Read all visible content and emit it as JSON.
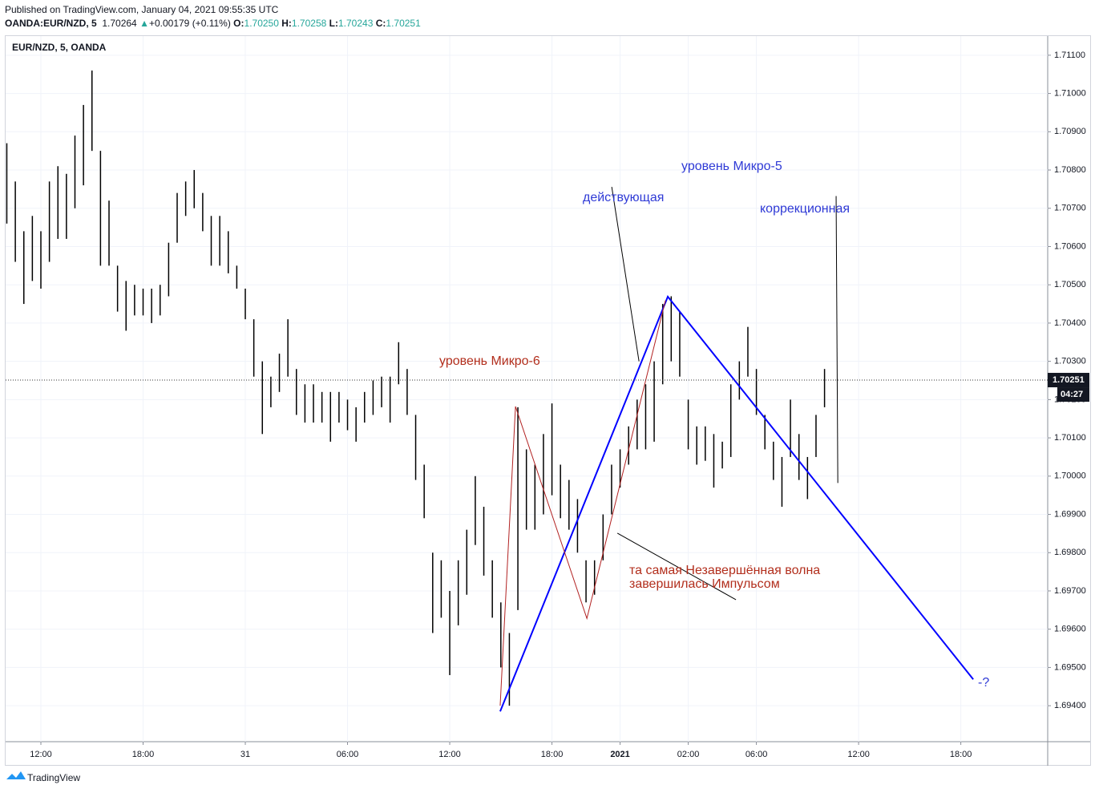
{
  "header": {
    "published": "Published on TradingView.com, January 04, 2021 09:55:35 UTC",
    "symbol": "OANDA:EUR/NZD, 5",
    "price": "1.70264",
    "arrow": "▲",
    "change": "+0.00179 (+0.11%)",
    "o_label": "O:",
    "o": "1.70250",
    "h_label": "H:",
    "h": "1.70258",
    "l_label": "L:",
    "l": "1.70243",
    "c_label": "C:",
    "c": "1.70251"
  },
  "footer": {
    "brand": "TradingView"
  },
  "chart_data": {
    "type": "ohlc",
    "title": "EUR/NZD, 5, OANDA",
    "color": "#000000",
    "x": [
      10,
      10.5,
      11,
      11.5,
      12,
      12.5,
      13,
      13.5,
      14,
      14.5,
      15,
      15.5,
      16,
      16.5,
      17,
      17.5,
      18,
      18.5,
      19,
      19.5,
      20,
      20.5,
      21,
      21.5,
      22,
      22.5,
      23,
      23.5,
      24,
      24.5,
      25,
      25.5,
      26,
      26.5,
      27,
      27.5,
      28,
      28.5,
      29,
      29.5,
      30,
      30.5,
      31,
      31.5,
      32,
      32.5,
      33,
      33.5,
      34,
      34.5,
      35,
      35.5,
      36,
      36.5,
      37,
      37.5,
      38,
      38.5,
      39,
      39.5,
      40,
      40.5,
      41,
      41.5,
      42,
      42.5,
      43,
      43.5,
      44,
      44.5,
      45,
      45.5,
      46,
      46.5,
      47,
      47.5,
      48,
      48.5,
      49,
      49.5,
      50,
      50.5,
      51,
      51.5,
      52,
      52.5,
      53,
      53.5,
      54,
      54.5,
      55,
      55.5,
      56,
      56.5,
      57,
      57.5,
      58
    ],
    "high": [
      1.7087,
      1.7077,
      1.7064,
      1.7068,
      1.7064,
      1.7077,
      1.7081,
      1.7079,
      1.7089,
      1.7097,
      1.7106,
      1.7085,
      1.7072,
      1.7055,
      1.7051,
      1.705,
      1.7049,
      1.7049,
      1.705,
      1.7061,
      1.7074,
      1.7077,
      1.708,
      1.7074,
      1.7068,
      1.7068,
      1.7064,
      1.7055,
      1.7049,
      1.7041,
      1.703,
      1.7026,
      1.7032,
      1.7041,
      1.7028,
      1.7024,
      1.7024,
      1.7022,
      1.7022,
      1.7022,
      1.702,
      1.7018,
      1.7022,
      1.7025,
      1.7026,
      1.7026,
      1.7035,
      1.7028,
      1.7016,
      1.7003,
      1.698,
      1.6978,
      1.697,
      1.6978,
      1.6986,
      1.7,
      1.6992,
      1.6978,
      1.6967,
      1.6959,
      1.7018,
      1.7007,
      1.7003,
      1.7011,
      1.7019,
      1.7003,
      1.6999,
      1.6994,
      1.6978,
      1.6978,
      1.699,
      1.7003,
      1.7007,
      1.7013,
      1.702,
      1.7024,
      1.703,
      1.7045,
      1.7047,
      1.7043,
      1.702,
      1.7013,
      1.7013,
      1.7011,
      1.7009,
      1.7024,
      1.703,
      1.7039,
      1.7028,
      1.7016,
      1.7009,
      1.7005,
      1.702,
      1.7011,
      1.7005,
      1.7016,
      1.7028
    ],
    "low": [
      1.7066,
      1.7056,
      1.7045,
      1.7051,
      1.7049,
      1.7056,
      1.7062,
      1.7062,
      1.707,
      1.7076,
      1.7085,
      1.7055,
      1.7055,
      1.7043,
      1.7038,
      1.7042,
      1.7042,
      1.704,
      1.7042,
      1.7047,
      1.7061,
      1.7068,
      1.707,
      1.7064,
      1.7055,
      1.7055,
      1.7053,
      1.7049,
      1.7041,
      1.7026,
      1.7011,
      1.7018,
      1.7022,
      1.7026,
      1.7016,
      1.7014,
      1.7014,
      1.7014,
      1.7009,
      1.7014,
      1.7012,
      1.7009,
      1.7014,
      1.7016,
      1.7018,
      1.7014,
      1.7024,
      1.7016,
      1.6999,
      1.6989,
      1.6959,
      1.6963,
      1.6948,
      1.6961,
      1.6969,
      1.6982,
      1.6974,
      1.6963,
      1.695,
      1.694,
      1.6965,
      1.6986,
      1.6986,
      1.699,
      1.6995,
      1.6989,
      1.6986,
      1.698,
      1.6967,
      1.6969,
      1.6978,
      1.699,
      1.6997,
      1.7003,
      1.7007,
      1.7007,
      1.7009,
      1.7024,
      1.703,
      1.7026,
      1.7007,
      1.7003,
      1.7004,
      1.6997,
      1.7002,
      1.7005,
      1.702,
      1.7026,
      1.7016,
      1.7007,
      1.6999,
      1.6992,
      1.7005,
      1.6999,
      1.6994,
      1.7005,
      1.7018
    ],
    "xlim": [
      9.93,
      71.1
    ],
    "ylim": [
      1.69306,
      1.7115
    ],
    "xticks": [
      {
        "value": 12,
        "label": "12:00"
      },
      {
        "value": 18,
        "label": "18:00"
      },
      {
        "value": 24,
        "label": "31"
      },
      {
        "value": 30,
        "label": "06:00"
      },
      {
        "value": 36,
        "label": "12:00"
      },
      {
        "value": 42,
        "label": "18:00"
      },
      {
        "value": 46,
        "label": "2021"
      },
      {
        "value": 50,
        "label": "02:00"
      },
      {
        "value": 54,
        "label": "06:00"
      },
      {
        "value": 60,
        "label": "12:00"
      },
      {
        "value": 66,
        "label": "18:00"
      }
    ],
    "yticks": [
      {
        "value": 1.711,
        "label": "1.71100"
      },
      {
        "value": 1.71,
        "label": "1.71000"
      },
      {
        "value": 1.709,
        "label": "1.70900"
      },
      {
        "value": 1.708,
        "label": "1.70800"
      },
      {
        "value": 1.707,
        "label": "1.70700"
      },
      {
        "value": 1.706,
        "label": "1.70600"
      },
      {
        "value": 1.705,
        "label": "1.70500"
      },
      {
        "value": 1.704,
        "label": "1.70400"
      },
      {
        "value": 1.703,
        "label": "1.70300"
      },
      {
        "value": 1.702,
        "label": "1.70200"
      },
      {
        "value": 1.701,
        "label": "1.70100"
      },
      {
        "value": 1.7,
        "label": "1.70000"
      },
      {
        "value": 1.699,
        "label": "1.69900"
      },
      {
        "value": 1.698,
        "label": "1.69800"
      },
      {
        "value": 1.697,
        "label": "1.69700"
      },
      {
        "value": 1.696,
        "label": "1.69600"
      },
      {
        "value": 1.695,
        "label": "1.69500"
      },
      {
        "value": 1.694,
        "label": "1.69400"
      }
    ],
    "grid": true,
    "last_price": 1.70251,
    "countdown": "04:27",
    "drawings": [
      {
        "color": "#0000ff",
        "width": 2,
        "x": [
          38.96,
          48.8,
          66.73
        ],
        "y": [
          1.69385,
          1.70469,
          1.69469
        ]
      },
      {
        "color": "#b22222",
        "width": 1,
        "x": [
          38.96,
          39.86,
          44.05,
          48.66
        ],
        "y": [
          1.694,
          1.70182,
          1.69628,
          1.70459
        ]
      },
      {
        "color": "#000000",
        "width": 1,
        "x": [
          45.51,
          47.11
        ],
        "y": [
          1.70756,
          1.703
        ]
      },
      {
        "color": "#000000",
        "width": 1,
        "x": [
          58.68,
          58.78
        ],
        "y": [
          1.70732,
          1.69982
        ]
      },
      {
        "color": "#000000",
        "width": 1,
        "x": [
          45.84,
          52.8
        ],
        "y": [
          1.69851,
          1.69677
        ]
      }
    ],
    "annotations": [
      "уровень Микро-5",
      "действующая",
      "коррекционная",
      "уровень Микро-6",
      "та самая Незавершённая волна",
      "завершилась Импульсом",
      "-?"
    ]
  }
}
